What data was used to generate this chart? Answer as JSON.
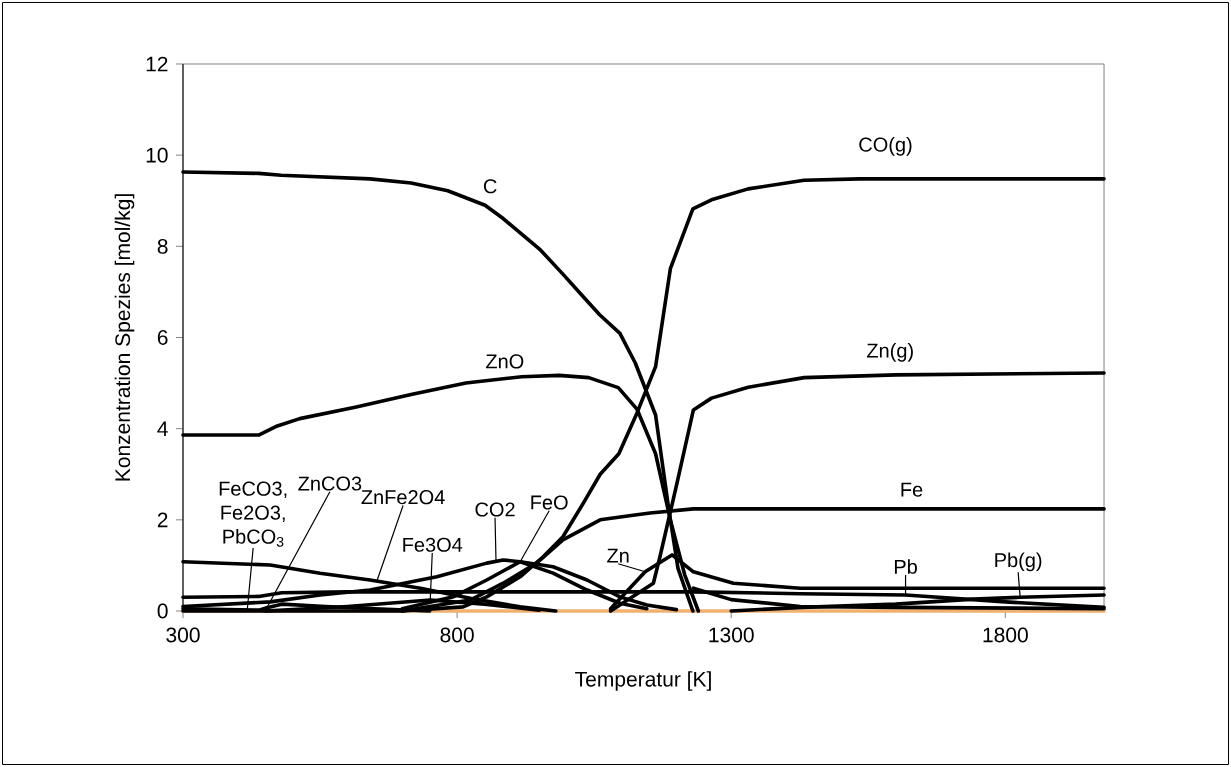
{
  "chart_data": {
    "type": "line",
    "xlabel": "Temperatur [K]",
    "ylabel": "Konzentration Spezies [mol/kg]",
    "xlim": [
      300,
      1980
    ],
    "xticks": [
      300,
      800,
      1300,
      1800
    ],
    "ylim": [
      0,
      12
    ],
    "yticks": [
      0,
      2,
      4,
      6,
      8,
      10,
      12
    ],
    "grid": false,
    "legend": false,
    "marker": "none",
    "line_style": "solid",
    "series": [
      {
        "color": "#f0b070",
        "x": [
          300,
          1980
        ],
        "values": [
          0,
          0
        ]
      },
      {
        "color": "#000000",
        "x": [
          300,
          438,
          479,
          641,
          716,
          783,
          851,
          884,
          952,
          993,
          1026,
          1060,
          1097,
          1125,
          1162,
          1186,
          1203,
          1230
        ],
        "values": [
          9.63,
          9.6,
          9.56,
          9.48,
          9.39,
          9.22,
          8.9,
          8.61,
          7.92,
          7.39,
          6.95,
          6.5,
          6.09,
          5.44,
          4.3,
          2.24,
          0.93,
          0
        ]
      },
      {
        "color": "#000000",
        "x": [
          300,
          438,
          472,
          513,
          614,
          716,
          816,
          918,
          986,
          1040,
          1094,
          1128,
          1162,
          1189,
          1215,
          1240
        ],
        "values": [
          3.86,
          3.86,
          4.06,
          4.22,
          4.47,
          4.75,
          5.0,
          5.14,
          5.17,
          5.12,
          4.9,
          4.43,
          3.45,
          2.0,
          0.8,
          0
        ]
      },
      {
        "color": "#000000",
        "x": [
          300,
          700,
          811,
          854,
          915,
          957,
          993,
          1030,
          1061,
          1095,
          1128,
          1162,
          1189,
          1230,
          1264,
          1331,
          1433,
          1534,
          1980
        ],
        "values": [
          0,
          0,
          0.09,
          0.31,
          0.75,
          1.19,
          1.63,
          2.36,
          3.0,
          3.45,
          4.34,
          5.36,
          7.51,
          8.82,
          9.02,
          9.26,
          9.45,
          9.48,
          9.48
        ]
      },
      {
        "color": "#000000",
        "x": [
          1080,
          1158,
          1170,
          1201,
          1231,
          1264,
          1331,
          1433,
          1601,
          1980
        ],
        "values": [
          0,
          0.61,
          1.19,
          2.8,
          4.41,
          4.67,
          4.91,
          5.12,
          5.18,
          5.22
        ]
      },
      {
        "color": "#000000",
        "x": [
          700,
          824,
          884,
          945,
          993,
          1061,
          1121,
          1152,
          1231,
          1980
        ],
        "values": [
          0,
          0.24,
          0.61,
          1.05,
          1.56,
          2.0,
          2.1,
          2.15,
          2.24,
          2.24
        ]
      },
      {
        "color": "#000000",
        "x": [
          300,
          459,
          550,
          641,
          733,
          824,
          915,
          980
        ],
        "values": [
          1.08,
          1.01,
          0.83,
          0.68,
          0.5,
          0.28,
          0.09,
          0
        ]
      },
      {
        "color": "#000000",
        "x": [
          300,
          438,
          480,
          600,
          1231,
          1426,
          1618,
          1800,
          1980
        ],
        "values": [
          0.3,
          0.32,
          0.4,
          0.42,
          0.42,
          0.38,
          0.35,
          0.2,
          0.08
        ]
      },
      {
        "color": "#000000",
        "x": [
          300,
          459,
          550,
          641,
          763,
          854,
          884,
          915,
          975,
          1037,
          1097,
          1146
        ],
        "values": [
          0.1,
          0.2,
          0.35,
          0.46,
          0.75,
          1.05,
          1.12,
          1.08,
          0.83,
          0.46,
          0.17,
          0.05
        ]
      },
      {
        "color": "#000000",
        "x": [
          700,
          793,
          854,
          915,
          975,
          1037,
          1097,
          1146,
          1200
        ],
        "values": [
          0.05,
          0.31,
          0.68,
          1.08,
          0.97,
          0.68,
          0.31,
          0.13,
          0.03
        ]
      },
      {
        "color": "#000000",
        "x": [
          1080,
          1143,
          1192,
          1231,
          1304,
          1426,
          1980
        ],
        "values": [
          0.05,
          0.86,
          1.23,
          0.86,
          0.61,
          0.5,
          0.5
        ]
      },
      {
        "color": "#000000",
        "x": [
          1300,
          1430,
          1600,
          1742,
          1827,
          1980
        ],
        "values": [
          0,
          0.08,
          0.15,
          0.26,
          0.3,
          0.35
        ]
      },
      {
        "color": "#000000",
        "x": [
          300,
          440,
          453,
          480,
          560,
          650,
          750
        ],
        "values": [
          0.05,
          0.02,
          0.07,
          0.15,
          0.1,
          0.05,
          0
        ]
      },
      {
        "color": "#000000",
        "x": [
          450,
          600,
          751,
          850,
          950
        ],
        "values": [
          0,
          0.1,
          0.24,
          0.15,
          0.02
        ]
      },
      {
        "color": "#000000",
        "x": [
          1231,
          1300,
          1426,
          1600,
          1980
        ],
        "values": [
          0.5,
          0.25,
          0.1,
          0.08,
          0.05
        ]
      }
    ],
    "annotations": [
      {
        "text": "C",
        "x": 884,
        "y": 8.61
      },
      {
        "text": "ZnO",
        "x": 918,
        "y": 5.14
      },
      {
        "text": "CO(g)",
        "x": 1534,
        "y": 9.48
      },
      {
        "text": "Zn(g)",
        "x": 1601,
        "y": 5.18
      },
      {
        "text": "Fe",
        "x": 1638,
        "y": 2.24
      },
      {
        "text": "FeCO3, Fe2O3, PbCO$_{3}$",
        "x": 417,
        "y": 0
      },
      {
        "text": "ZnCO3",
        "x": 453,
        "y": 0.07
      },
      {
        "text": "ZnFe2O4",
        "x": 654,
        "y": 0.67
      },
      {
        "text": "Fe3O4",
        "x": 751,
        "y": 0.24
      },
      {
        "text": "CO2",
        "x": 871,
        "y": 1.08
      },
      {
        "text": "FeO",
        "x": 915,
        "y": 1.08
      },
      {
        "text": "Zn",
        "x": 1143,
        "y": 0.86
      },
      {
        "text": "Pb",
        "x": 1618,
        "y": 0.35
      },
      {
        "text": "Pb(g)",
        "x": 1827,
        "y": 0.3
      }
    ]
  }
}
